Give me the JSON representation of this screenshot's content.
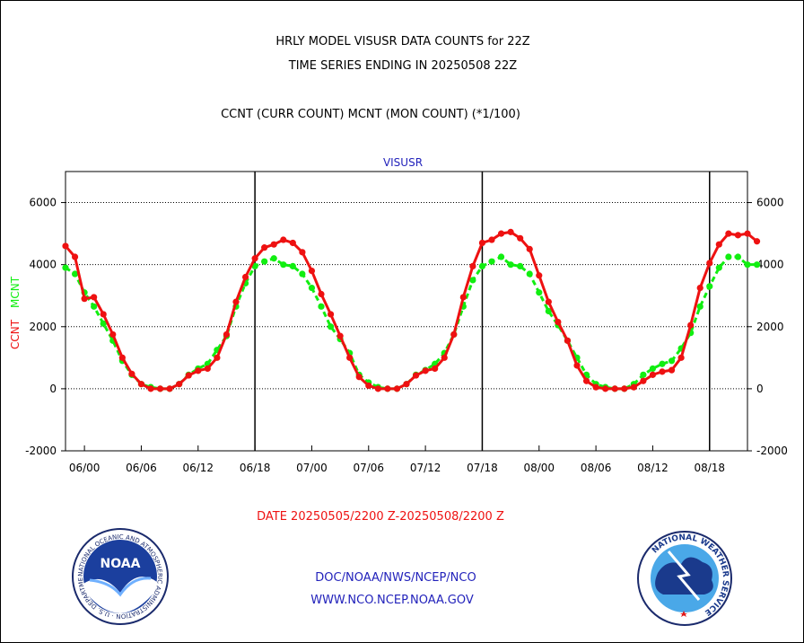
{
  "titles": {
    "line1": "HRLY MODEL VISUSR DATA COUNTS for 22Z",
    "line2": "TIME SERIES ENDING IN 20250508 22Z",
    "line3": "CCNT (CURR COUNT) MCNT (MON COUNT) (*1/100)",
    "panel_label": "VISUSR",
    "date_range": "DATE 20250505/2200 Z-20250508/2200 Z",
    "footer_line1": "DOC/NOAA/NWS/NCEP/NCO",
    "footer_line2": "WWW.NCO.NCEP.NOAA.GOV"
  },
  "logos": {
    "noaa_text": "NOAA",
    "noaa_ring_text": "NATIONAL OCEANIC AND ATMOSPHERIC ADMINISTRATION · U.S. DEPARTMENT OF COMMERCE",
    "nws_ring_text": "NATIONAL WEATHER SERVICE"
  },
  "colors": {
    "ccnt": "#ee1111",
    "mcnt": "#11ee11",
    "label_blue": "#2222bb",
    "date_red": "#ee1111"
  },
  "chart_data": {
    "type": "line",
    "xlabel": "",
    "ylabel_parts": [
      "CCNT",
      "MCNT"
    ],
    "ylim": [
      -2000,
      7000
    ],
    "yticks": [
      -2000,
      0,
      2000,
      4000,
      6000
    ],
    "x_start_hour": -2,
    "x_end_hour": 70,
    "xticks": [
      {
        "hour": 0,
        "label": "06/00"
      },
      {
        "hour": 6,
        "label": "06/06"
      },
      {
        "hour": 12,
        "label": "06/12"
      },
      {
        "hour": 18,
        "label": "06/18"
      },
      {
        "hour": 24,
        "label": "07/00"
      },
      {
        "hour": 30,
        "label": "07/06"
      },
      {
        "hour": 36,
        "label": "07/12"
      },
      {
        "hour": 42,
        "label": "07/18"
      },
      {
        "hour": 48,
        "label": "08/00"
      },
      {
        "hour": 54,
        "label": "08/06"
      },
      {
        "hour": 60,
        "label": "08/12"
      },
      {
        "hour": 66,
        "label": "08/18"
      }
    ],
    "day_boundaries": [
      18,
      42,
      66
    ],
    "grid": "horizontal dotted at 0, 2000, 4000, 6000",
    "series": [
      {
        "name": "CCNT",
        "color": "#ee1111",
        "values": [
          4600,
          4250,
          2900,
          2950,
          2400,
          1750,
          1000,
          480,
          150,
          0,
          0,
          0,
          150,
          430,
          580,
          650,
          1000,
          1750,
          2800,
          3600,
          4200,
          4550,
          4650,
          4800,
          4700,
          4400,
          3800,
          3050,
          2400,
          1700,
          1000,
          380,
          100,
          0,
          0,
          0,
          150,
          430,
          580,
          650,
          1000,
          1750,
          2950,
          3950,
          4700,
          4800,
          5000,
          5050,
          4850,
          4500,
          3650,
          2800,
          2150,
          1550,
          750,
          250,
          50,
          0,
          0,
          0,
          50,
          250,
          450,
          550,
          600,
          1000,
          2050,
          3250,
          4050,
          4650,
          5000,
          4950,
          5000,
          4750
        ]
      },
      {
        "name": "MCNT",
        "color": "#11ee11",
        "values": [
          3900,
          3700,
          3100,
          2650,
          2100,
          1550,
          900,
          450,
          150,
          50,
          0,
          0,
          150,
          450,
          650,
          800,
          1250,
          1700,
          2650,
          3400,
          3950,
          4100,
          4200,
          4000,
          3950,
          3700,
          3250,
          2650,
          2000,
          1600,
          1150,
          450,
          200,
          50,
          0,
          0,
          150,
          450,
          600,
          800,
          1150,
          1750,
          2650,
          3500,
          3950,
          4100,
          4250,
          4000,
          3950,
          3700,
          3100,
          2500,
          2050,
          1550,
          1000,
          450,
          150,
          50,
          0,
          0,
          150,
          450,
          650,
          800,
          900,
          1300,
          1800,
          2650,
          3300,
          3900,
          4250,
          4250,
          4000,
          4000
        ]
      }
    ]
  }
}
